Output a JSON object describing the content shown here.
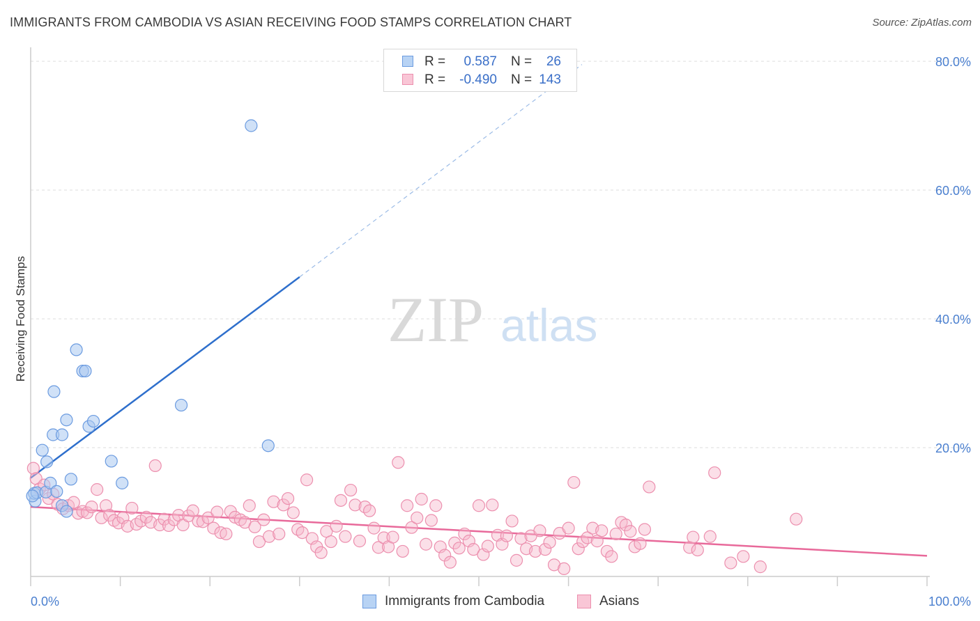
{
  "title": "IMMIGRANTS FROM CAMBODIA VS ASIAN RECEIVING FOOD STAMPS CORRELATION CHART",
  "source": "Source: ZipAtlas.com",
  "watermark": {
    "zip": "ZIP",
    "atlas": "atlas"
  },
  "colors": {
    "blue_fill": "#a9c8f0",
    "blue_stroke": "#6b9be0",
    "blue_line": "#2e6fcc",
    "pink_fill": "#f7b9cc",
    "pink_stroke": "#ec8fae",
    "pink_line": "#e8699a",
    "tick_text": "#4a7fcf",
    "grid": "#dddddd"
  },
  "legend": {
    "rows": [
      {
        "r_label": "R =",
        "r_value": "0.587",
        "n_label": "N =",
        "n_value": "26"
      },
      {
        "r_label": "R =",
        "r_value": "-0.490",
        "n_label": "N =",
        "n_value": "143"
      }
    ]
  },
  "bottom_legend": {
    "items": [
      {
        "label": "Immigrants from Cambodia"
      },
      {
        "label": "Asians"
      }
    ]
  },
  "chart_data": {
    "type": "scatter",
    "title": "IMMIGRANTS FROM CAMBODIA VS ASIAN RECEIVING FOOD STAMPS CORRELATION CHART",
    "xlabel": "",
    "ylabel": "Receiving Food Stamps",
    "xlim": [
      0,
      100
    ],
    "ylim": [
      0,
      80
    ],
    "x_tick_labels": [
      "0.0%",
      "100.0%"
    ],
    "y_ticks": [
      20,
      40,
      60,
      80
    ],
    "y_tick_labels": [
      "20.0%",
      "40.0%",
      "60.0%",
      "80.0%"
    ],
    "grid": true,
    "legend_placement": "top-center",
    "series": [
      {
        "name": "Immigrants from Cambodia",
        "color": "#a9c8f0",
        "trend": {
          "x": [
            0,
            30
          ],
          "y": [
            15.3,
            46.5
          ],
          "dashed_to": {
            "x": 61.5,
            "y": 79.5
          }
        },
        "points": [
          [
            0.5,
            11.7
          ],
          [
            0.4,
            12.9
          ],
          [
            0.7,
            13.0
          ],
          [
            1.3,
            19.6
          ],
          [
            1.7,
            13.1
          ],
          [
            1.8,
            17.8
          ],
          [
            2.2,
            14.5
          ],
          [
            2.5,
            22.0
          ],
          [
            2.6,
            28.7
          ],
          [
            2.9,
            13.2
          ],
          [
            3.5,
            22.0
          ],
          [
            3.5,
            11.0
          ],
          [
            4.0,
            24.3
          ],
          [
            4.0,
            10.1
          ],
          [
            4.5,
            15.1
          ],
          [
            5.1,
            35.2
          ],
          [
            5.8,
            31.9
          ],
          [
            6.1,
            31.9
          ],
          [
            6.5,
            23.3
          ],
          [
            7.0,
            24.1
          ],
          [
            9.0,
            17.9
          ],
          [
            10.2,
            14.5
          ],
          [
            16.8,
            26.6
          ],
          [
            24.6,
            70.0
          ],
          [
            26.5,
            20.3
          ],
          [
            0.2,
            12.5
          ]
        ]
      },
      {
        "name": "Asians",
        "color": "#f7b9cc",
        "trend": {
          "x": [
            0,
            100
          ],
          "y": [
            10.8,
            3.2
          ]
        },
        "points": [
          [
            0.3,
            16.8
          ],
          [
            0.6,
            15.2
          ],
          [
            1.0,
            13.6
          ],
          [
            1.5,
            14.2
          ],
          [
            2.0,
            12.1
          ],
          [
            2.5,
            12.8
          ],
          [
            3.0,
            11.2
          ],
          [
            3.6,
            10.5
          ],
          [
            4.2,
            11.0
          ],
          [
            4.8,
            11.5
          ],
          [
            5.3,
            9.8
          ],
          [
            5.8,
            10.1
          ],
          [
            6.3,
            9.9
          ],
          [
            6.8,
            10.8
          ],
          [
            7.4,
            13.5
          ],
          [
            7.9,
            9.1
          ],
          [
            8.4,
            11.0
          ],
          [
            8.8,
            9.5
          ],
          [
            9.3,
            8.7
          ],
          [
            9.8,
            8.3
          ],
          [
            10.3,
            9.1
          ],
          [
            10.8,
            7.8
          ],
          [
            11.3,
            10.6
          ],
          [
            11.8,
            8.1
          ],
          [
            12.3,
            8.6
          ],
          [
            12.9,
            9.2
          ],
          [
            13.4,
            8.4
          ],
          [
            13.9,
            17.2
          ],
          [
            14.4,
            8.0
          ],
          [
            14.9,
            8.9
          ],
          [
            15.4,
            7.9
          ],
          [
            16.0,
            8.8
          ],
          [
            16.5,
            9.5
          ],
          [
            17.0,
            8.0
          ],
          [
            17.6,
            9.4
          ],
          [
            18.1,
            10.2
          ],
          [
            18.7,
            8.6
          ],
          [
            19.2,
            8.5
          ],
          [
            19.8,
            9.1
          ],
          [
            20.4,
            7.5
          ],
          [
            20.8,
            10.0
          ],
          [
            21.2,
            6.8
          ],
          [
            21.8,
            6.6
          ],
          [
            22.3,
            10.1
          ],
          [
            22.8,
            9.2
          ],
          [
            23.4,
            8.8
          ],
          [
            23.9,
            8.4
          ],
          [
            24.4,
            11.0
          ],
          [
            25.0,
            7.7
          ],
          [
            25.5,
            5.4
          ],
          [
            26.0,
            8.8
          ],
          [
            26.6,
            6.2
          ],
          [
            27.1,
            11.6
          ],
          [
            27.7,
            6.6
          ],
          [
            28.2,
            11.1
          ],
          [
            28.7,
            12.1
          ],
          [
            29.3,
            9.9
          ],
          [
            29.8,
            7.3
          ],
          [
            30.3,
            6.8
          ],
          [
            30.8,
            15.0
          ],
          [
            31.4,
            5.9
          ],
          [
            31.9,
            4.6
          ],
          [
            32.4,
            3.7
          ],
          [
            33.0,
            7.0
          ],
          [
            33.5,
            5.4
          ],
          [
            34.1,
            7.8
          ],
          [
            34.6,
            11.8
          ],
          [
            35.1,
            6.2
          ],
          [
            35.7,
            13.4
          ],
          [
            36.2,
            11.1
          ],
          [
            36.7,
            5.5
          ],
          [
            37.3,
            10.8
          ],
          [
            37.8,
            10.2
          ],
          [
            38.3,
            7.5
          ],
          [
            38.8,
            4.5
          ],
          [
            39.4,
            6.0
          ],
          [
            39.9,
            4.6
          ],
          [
            40.4,
            6.1
          ],
          [
            41.0,
            17.7
          ],
          [
            41.5,
            3.9
          ],
          [
            42.0,
            11.0
          ],
          [
            42.5,
            7.6
          ],
          [
            43.1,
            9.1
          ],
          [
            43.6,
            12.0
          ],
          [
            44.1,
            5.0
          ],
          [
            44.7,
            8.7
          ],
          [
            45.2,
            11.0
          ],
          [
            45.7,
            4.6
          ],
          [
            46.2,
            3.3
          ],
          [
            46.8,
            2.2
          ],
          [
            47.3,
            5.2
          ],
          [
            47.8,
            4.4
          ],
          [
            48.4,
            6.6
          ],
          [
            48.9,
            5.5
          ],
          [
            49.4,
            4.2
          ],
          [
            50.0,
            11.0
          ],
          [
            50.5,
            3.4
          ],
          [
            51.0,
            4.7
          ],
          [
            51.5,
            11.1
          ],
          [
            52.1,
            6.4
          ],
          [
            52.6,
            5.0
          ],
          [
            53.1,
            6.3
          ],
          [
            53.7,
            8.6
          ],
          [
            54.2,
            2.5
          ],
          [
            54.7,
            5.9
          ],
          [
            55.3,
            4.3
          ],
          [
            55.8,
            6.3
          ],
          [
            56.3,
            3.9
          ],
          [
            56.8,
            7.1
          ],
          [
            57.4,
            4.2
          ],
          [
            57.9,
            5.3
          ],
          [
            58.4,
            1.8
          ],
          [
            59.0,
            6.7
          ],
          [
            59.5,
            1.2
          ],
          [
            60.0,
            7.5
          ],
          [
            60.6,
            14.6
          ],
          [
            61.1,
            4.3
          ],
          [
            61.6,
            5.4
          ],
          [
            62.1,
            6.0
          ],
          [
            62.7,
            7.5
          ],
          [
            63.2,
            5.5
          ],
          [
            63.7,
            7.1
          ],
          [
            64.3,
            3.9
          ],
          [
            64.8,
            3.1
          ],
          [
            65.3,
            6.6
          ],
          [
            65.9,
            8.4
          ],
          [
            66.4,
            8.0
          ],
          [
            66.9,
            7.0
          ],
          [
            67.4,
            4.6
          ],
          [
            68.0,
            5.1
          ],
          [
            68.5,
            7.3
          ],
          [
            69.0,
            13.9
          ],
          [
            73.5,
            4.5
          ],
          [
            73.9,
            6.1
          ],
          [
            74.4,
            4.1
          ],
          [
            75.8,
            6.2
          ],
          [
            76.3,
            16.1
          ],
          [
            78.1,
            2.1
          ],
          [
            79.5,
            3.1
          ],
          [
            81.4,
            1.5
          ],
          [
            85.4,
            8.9
          ]
        ]
      }
    ]
  }
}
